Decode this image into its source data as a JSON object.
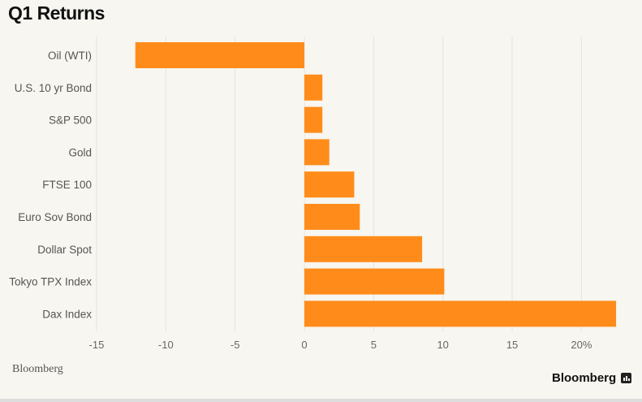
{
  "chart_data": {
    "type": "bar",
    "orientation": "horizontal",
    "title": "Q1 Returns",
    "categories": [
      "Oil (WTI)",
      "U.S. 10 yr Bond",
      "S&P 500",
      "Gold",
      "FTSE 100",
      "Euro Sov Bond",
      "Dollar Spot",
      "Tokyo TPX Index",
      "Dax Index"
    ],
    "values": [
      -12.2,
      1.3,
      1.3,
      1.8,
      3.6,
      4.0,
      8.5,
      10.1,
      22.5
    ],
    "xlim": [
      -15,
      23
    ],
    "xticks": [
      -15,
      -10,
      -5,
      0,
      5,
      10,
      15,
      20
    ],
    "xtick_labels": [
      "-15",
      "-10",
      "-5",
      "0",
      "5",
      "10",
      "15",
      "20%"
    ],
    "grid": "vertical",
    "bar_color": "#ff8c1a",
    "xlabel": "",
    "ylabel": ""
  },
  "footer": {
    "source": "Bloomberg",
    "brand": "Bloomberg",
    "brand_icon": "bar-chart-icon"
  }
}
